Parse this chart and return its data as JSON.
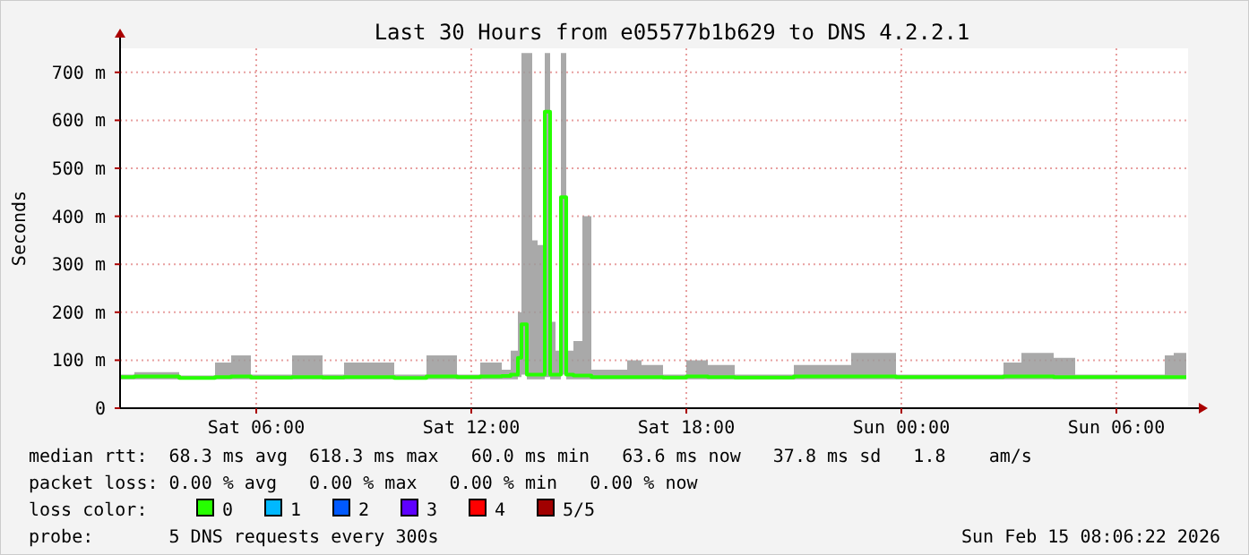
{
  "chart_data": {
    "type": "step",
    "title": "Last 30 Hours from e05577b1b629 to DNS 4.2.2.1",
    "ylabel": "Seconds",
    "xlim": [
      "2026-02-14T02:12",
      "2026-02-15T08:00"
    ],
    "xticks": [
      {
        "value": "2026-02-14T06:00",
        "label": "Sat 06:00"
      },
      {
        "value": "2026-02-14T12:00",
        "label": "Sat 12:00"
      },
      {
        "value": "2026-02-14T18:00",
        "label": "Sat 18:00"
      },
      {
        "value": "2026-02-15T00:00",
        "label": "Sun 00:00"
      },
      {
        "value": "2026-02-15T06:00",
        "label": "Sun 06:00"
      }
    ],
    "ylim": [
      0,
      750
    ],
    "yticks": [
      0,
      {
        "value": 100,
        "label": "100 m"
      },
      {
        "value": 200,
        "label": "200 m"
      },
      {
        "value": 300,
        "label": "300 m"
      },
      {
        "value": 400,
        "label": "400 m"
      },
      {
        "value": 500,
        "label": "500 m"
      },
      {
        "value": 600,
        "label": "600 m"
      },
      {
        "value": 700,
        "label": "700 m"
      }
    ],
    "grid": true,
    "legend": "bottom",
    "legend_title": "loss color:",
    "series": [
      {
        "name": "0",
        "color": "#26ff00",
        "x": [
          "2026-02-14T02:12",
          "2026-02-14T02:36",
          "2026-02-14T03:51",
          "2026-02-14T04:51",
          "2026-02-14T05:18",
          "2026-02-14T05:51",
          "2026-02-14T07:00",
          "2026-02-14T07:51",
          "2026-02-14T08:27",
          "2026-02-14T09:51",
          "2026-02-14T10:45",
          "2026-02-14T11:36",
          "2026-02-14T12:15",
          "2026-02-14T12:51",
          "2026-02-14T13:06",
          "2026-02-14T13:18",
          "2026-02-14T13:24",
          "2026-02-14T13:33",
          "2026-02-14T13:42",
          "2026-02-14T13:51",
          "2026-02-14T14:03",
          "2026-02-14T14:12",
          "2026-02-14T14:21",
          "2026-02-14T14:30",
          "2026-02-14T14:39",
          "2026-02-14T14:51",
          "2026-02-14T15:06",
          "2026-02-14T15:21",
          "2026-02-14T16:21",
          "2026-02-14T16:45",
          "2026-02-14T17:21",
          "2026-02-14T18:00",
          "2026-02-14T18:36",
          "2026-02-14T19:21",
          "2026-02-14T21:00",
          "2026-02-14T22:36",
          "2026-02-14T23:51",
          "2026-02-15T02:51",
          "2026-02-15T03:21",
          "2026-02-15T04:15",
          "2026-02-15T04:51",
          "2026-02-15T07:21",
          "2026-02-15T07:36",
          "2026-02-15T07:57"
        ],
        "values": [
          65,
          66,
          63,
          65,
          66,
          64,
          65,
          64,
          65,
          63,
          66,
          65,
          66,
          67,
          70,
          105,
          175,
          70,
          70,
          70,
          618,
          70,
          70,
          440,
          70,
          68,
          68,
          65,
          65,
          65,
          64,
          66,
          65,
          64,
          66,
          66,
          65,
          66,
          66,
          65,
          65,
          65,
          65,
          65
        ],
        "lower": [
          60,
          60,
          60,
          60,
          60,
          60,
          60,
          60,
          60,
          60,
          60,
          60,
          60,
          60,
          60,
          65,
          70,
          60,
          60,
          60,
          65,
          60,
          60,
          70,
          60,
          60,
          60,
          60,
          60,
          60,
          60,
          60,
          60,
          60,
          60,
          60,
          60,
          60,
          60,
          60,
          60,
          60,
          60,
          60
        ],
        "upper": [
          70,
          75,
          68,
          95,
          110,
          70,
          110,
          70,
          95,
          70,
          110,
          70,
          95,
          80,
          120,
          200,
          740,
          740,
          350,
          340,
          740,
          180,
          120,
          740,
          120,
          140,
          400,
          80,
          100,
          90,
          70,
          100,
          90,
          70,
          90,
          115,
          70,
          95,
          115,
          105,
          70,
          110,
          115,
          70
        ]
      },
      {
        "name": "1",
        "color": "#00b8ff"
      },
      {
        "name": "2",
        "color": "#0059ff"
      },
      {
        "name": "3",
        "color": "#5e00ff"
      },
      {
        "name": "4",
        "color": "#ff0000"
      },
      {
        "name": "5/5",
        "color": "#a10000"
      }
    ],
    "annotations": [
      "median rtt:  68.3 ms avg  618.3 ms max   60.0 ms min   63.6 ms now   37.8 ms sd   1.8    am/s",
      "packet loss: 0.00 % avg   0.00 % max   0.00 % min   0.00 % now",
      "probe:       5 DNS requests every 300s",
      "Sun Feb 15 08:06:22 2026"
    ]
  }
}
